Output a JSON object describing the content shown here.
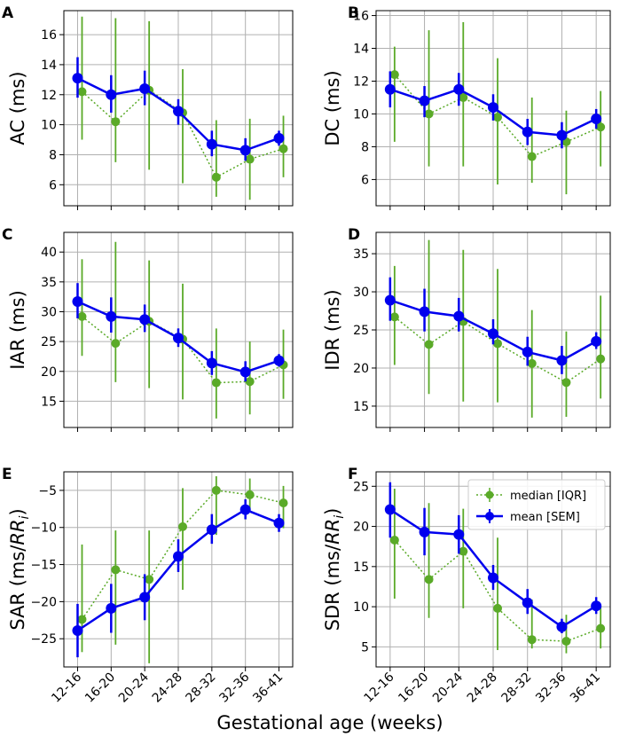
{
  "figure": {
    "xlabel": "Gestational age (weeks)",
    "categories": [
      "12-16",
      "16-20",
      "20-24",
      "24-28",
      "28-32",
      "32-36",
      "36-41"
    ],
    "legend": {
      "median_label": "median [IQR]",
      "mean_label": "mean [SEM]"
    },
    "colors": {
      "median": "#5aaa28",
      "mean": "#0000ee",
      "grid": "#b0b0b0"
    }
  },
  "chart_data": [
    {
      "type": "line",
      "panel": "A",
      "ylabel": "AC (ms)",
      "ylabel_sub": "",
      "ylim": [
        4.6,
        17.6
      ],
      "yticks": [
        6,
        8,
        10,
        12,
        14,
        16
      ],
      "mean": [
        13.1,
        12.0,
        12.4,
        10.9,
        8.7,
        8.3,
        9.1
      ],
      "sem_low": [
        11.8,
        10.8,
        11.3,
        10.0,
        7.9,
        7.6,
        8.6
      ],
      "sem_high": [
        14.5,
        13.3,
        13.6,
        11.7,
        9.6,
        9.1,
        9.6
      ],
      "median": [
        12.2,
        10.2,
        12.3,
        10.8,
        6.5,
        7.7,
        8.4
      ],
      "iqr_low": [
        9.0,
        7.5,
        7.0,
        6.1,
        5.2,
        5.0,
        6.5
      ],
      "iqr_high": [
        17.2,
        17.1,
        16.9,
        13.7,
        10.3,
        10.4,
        10.6
      ]
    },
    {
      "type": "line",
      "panel": "B",
      "ylabel": "DC (ms)",
      "ylabel_sub": "",
      "ylim": [
        4.4,
        16.3
      ],
      "yticks": [
        6,
        8,
        10,
        12,
        14,
        16
      ],
      "mean": [
        11.5,
        10.8,
        11.5,
        10.4,
        8.9,
        8.7,
        9.7
      ],
      "sem_low": [
        10.4,
        9.8,
        10.5,
        9.6,
        8.1,
        7.9,
        9.1
      ],
      "sem_high": [
        12.6,
        11.7,
        12.5,
        11.2,
        9.7,
        9.5,
        10.3
      ],
      "median": [
        12.4,
        10.0,
        11.0,
        9.8,
        7.4,
        8.3,
        9.2
      ],
      "iqr_low": [
        8.3,
        6.8,
        6.8,
        5.7,
        5.8,
        5.1,
        6.8
      ],
      "iqr_high": [
        14.1,
        15.1,
        15.6,
        13.4,
        11.0,
        10.2,
        11.4
      ]
    },
    {
      "type": "line",
      "panel": "C",
      "ylabel": "IAR (ms)",
      "ylabel_sub": "",
      "ylim": [
        10.6,
        43.3
      ],
      "yticks": [
        15,
        20,
        25,
        30,
        35,
        40
      ],
      "mean": [
        31.7,
        29.2,
        28.7,
        25.6,
        21.4,
        19.9,
        21.8
      ],
      "sem_low": [
        28.9,
        26.5,
        26.6,
        24.1,
        19.4,
        18.3,
        20.8
      ],
      "sem_high": [
        34.8,
        32.4,
        31.2,
        27.2,
        23.4,
        21.7,
        22.9
      ],
      "median": [
        29.2,
        24.7,
        28.4,
        25.4,
        18.1,
        18.3,
        21.1
      ],
      "iqr_low": [
        22.6,
        18.2,
        17.2,
        15.3,
        12.1,
        12.8,
        15.4
      ],
      "iqr_high": [
        38.8,
        41.7,
        38.6,
        34.7,
        27.2,
        25.0,
        27.0
      ]
    },
    {
      "type": "line",
      "panel": "D",
      "ylabel": "IDR (ms)",
      "ylabel_sub": "",
      "ylim": [
        12.2,
        37.8
      ],
      "yticks": [
        15,
        20,
        25,
        30,
        35
      ],
      "mean": [
        28.9,
        27.4,
        26.8,
        24.5,
        22.1,
        21.0,
        23.5
      ],
      "sem_low": [
        26.2,
        24.8,
        24.8,
        23.1,
        20.3,
        19.2,
        22.5
      ],
      "sem_high": [
        31.9,
        30.4,
        29.2,
        26.4,
        24.1,
        22.9,
        24.7
      ],
      "median": [
        26.7,
        23.1,
        26.1,
        23.2,
        20.6,
        18.1,
        21.2
      ],
      "iqr_low": [
        20.4,
        16.6,
        15.6,
        15.5,
        13.5,
        13.6,
        16.0
      ],
      "iqr_high": [
        33.4,
        36.8,
        35.5,
        33.0,
        27.6,
        24.8,
        29.5
      ]
    },
    {
      "type": "line",
      "panel": "E",
      "ylabel": "SAR (ms/",
      "ylabel_sub": "i",
      "ylim": [
        -28.8,
        -2.5
      ],
      "yticks": [
        -25,
        -20,
        -15,
        -10,
        -5
      ],
      "mean": [
        -23.9,
        -20.9,
        -19.4,
        -13.9,
        -10.3,
        -7.6,
        -9.4
      ],
      "sem_low": [
        -27.5,
        -24.2,
        -22.5,
        -16.0,
        -12.2,
        -8.9,
        -10.6
      ],
      "sem_high": [
        -20.3,
        -17.6,
        -16.3,
        -11.6,
        -8.2,
        -6.2,
        -8.2
      ],
      "median": [
        -22.4,
        -15.7,
        -17.0,
        -9.9,
        -5.0,
        -5.6,
        -6.7
      ],
      "iqr_low": [
        -26.8,
        -25.8,
        -28.3,
        -18.4,
        -11.0,
        -8.0,
        -10.1
      ],
      "iqr_high": [
        -12.3,
        -10.4,
        -10.4,
        -4.7,
        -3.1,
        -3.4,
        -4.4
      ]
    },
    {
      "type": "line",
      "panel": "F",
      "ylabel": "SDR (ms/",
      "ylabel_sub": "i",
      "ylim": [
        2.5,
        26.8
      ],
      "yticks": [
        5,
        10,
        15,
        20,
        25
      ],
      "mean": [
        22.1,
        19.3,
        19.0,
        13.6,
        10.5,
        7.5,
        10.1
      ],
      "sem_low": [
        18.6,
        16.4,
        16.6,
        12.1,
        9.1,
        6.7,
        9.1
      ],
      "sem_high": [
        25.5,
        22.3,
        21.4,
        15.2,
        12.2,
        8.5,
        11.2
      ],
      "median": [
        18.3,
        13.4,
        16.9,
        9.8,
        5.9,
        5.7,
        7.3
      ],
      "iqr_low": [
        11.0,
        8.6,
        9.8,
        4.6,
        4.8,
        4.2,
        4.8
      ],
      "iqr_high": [
        24.7,
        22.9,
        22.2,
        18.6,
        10.9,
        9.0,
        10.1
      ]
    }
  ]
}
